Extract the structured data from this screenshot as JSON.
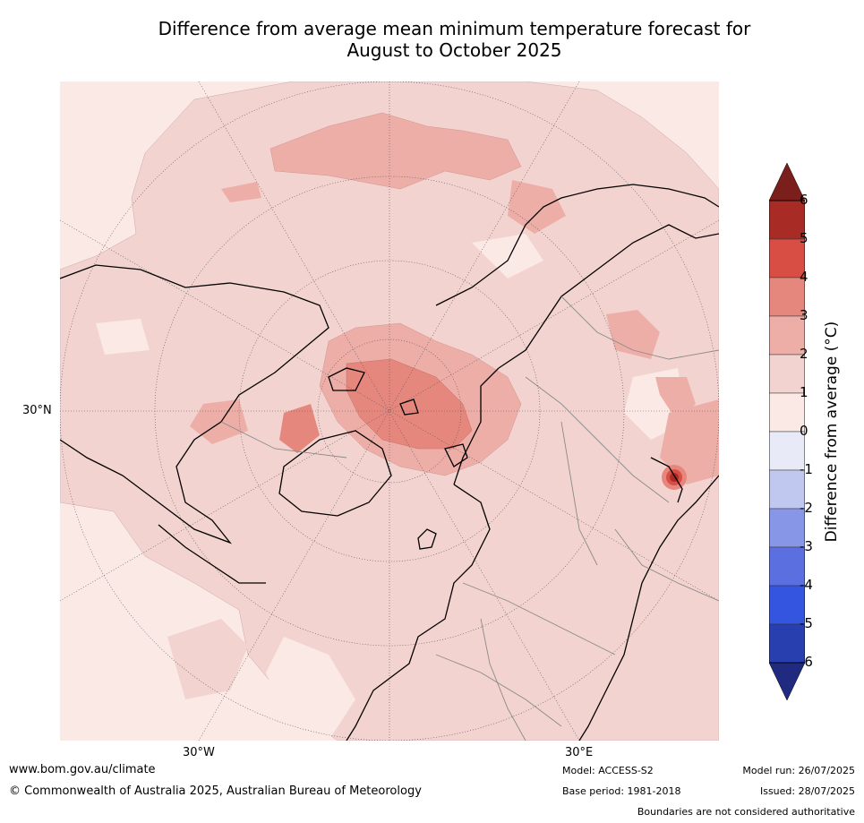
{
  "title": {
    "line1": "Difference from average mean minimum temperature forecast for",
    "line2": "August to October 2025"
  },
  "map": {
    "region": "Northern Hemisphere polar projection",
    "lat_label": "30°N",
    "lon_label_west": "30°W",
    "lon_label_east": "30°E",
    "colors": {
      "ocean_base": "#fbe9e6",
      "band_0_1": "#fbe9e6",
      "band_1_2": "#f3d3cf",
      "band_2_3": "#edaea8",
      "band_3_4": "#e6877e",
      "band_4_5": "#d84d44",
      "band_5_6": "#a92b26",
      "coast": "#000000",
      "border": "#8a8a8a",
      "grid": "#555555"
    }
  },
  "colorbar": {
    "title": "Difference from average (°C)",
    "unit": "°C",
    "tick_labels": [
      "6",
      "5",
      "4",
      "3",
      "2",
      "1",
      "0",
      "-1",
      "-2",
      "-3",
      "-4",
      "-5",
      "-6"
    ],
    "bands_top_to_bottom": [
      "#a92b26",
      "#d84d44",
      "#e6877e",
      "#edaea8",
      "#f3d3cf",
      "#fbe9e6",
      "#e8eaf8",
      "#c1c8f0",
      "#8896e8",
      "#5b6fe0",
      "#3355e0",
      "#283fb0"
    ],
    "over_color": "#7a1f1b",
    "under_color": "#1f2a80"
  },
  "footer": {
    "website": "www.bom.gov.au/climate",
    "copyright": "© Commonwealth of Australia 2025, Australian Bureau of Meteorology",
    "model": "Model: ACCESS-S2",
    "base_period": "Base period: 1981-2018",
    "model_run": "Model run: 26/07/2025",
    "issued": "Issued: 28/07/2025",
    "disclaimer": "Boundaries are not considered authoritative"
  }
}
